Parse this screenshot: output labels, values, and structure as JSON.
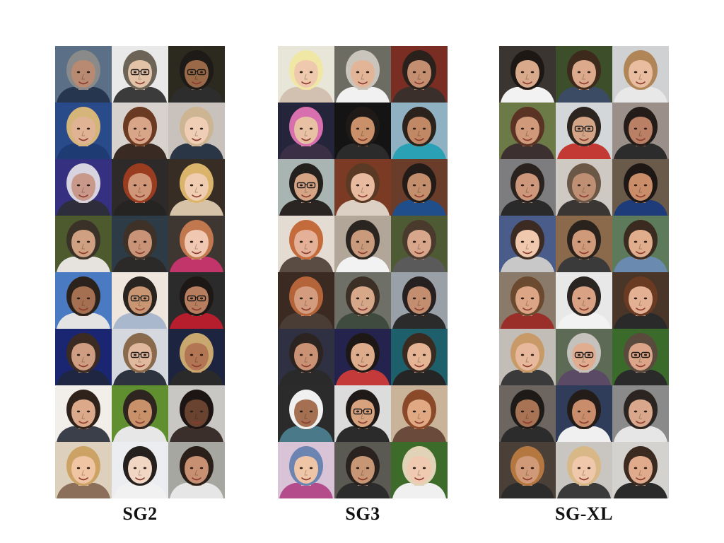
{
  "panels": [
    {
      "label": "SG2",
      "faces": [
        {
          "bg": "#5b6f86",
          "skin": "#b88a72",
          "hair": "#8a8a8a",
          "shirt": "#27364f",
          "glasses": false
        },
        {
          "bg": "#e9e9e9",
          "skin": "#e3c3a8",
          "hair": "#6d6458",
          "shirt": "#3b3b3b",
          "glasses": true
        },
        {
          "bg": "#2c2a1f",
          "skin": "#9a6a48",
          "hair": "#1e1a18",
          "shirt": "#2d2d2d",
          "glasses": true
        },
        {
          "bg": "#2a4b8a",
          "skin": "#e0b394",
          "hair": "#d6b57a",
          "shirt": "#1f3b74",
          "glasses": false
        },
        {
          "bg": "#d8d2cf",
          "skin": "#d9a588",
          "hair": "#6b3a22",
          "shirt": "#3a2a24",
          "glasses": false
        },
        {
          "bg": "#c9c2bc",
          "skin": "#f0cdb5",
          "hair": "#cdb594",
          "shirt": "#2a3646",
          "glasses": false
        },
        {
          "bg": "#35307f",
          "skin": "#c8988a",
          "hair": "#d7d4df",
          "shirt": "#2d2d3c",
          "glasses": false
        },
        {
          "bg": "#2f2a2a",
          "skin": "#cf9678",
          "hair": "#9a3c1f",
          "shirt": "#262323",
          "glasses": false
        },
        {
          "bg": "#372d25",
          "skin": "#f0cdb0",
          "hair": "#d9b46a",
          "shirt": "#d6c2a6",
          "glasses": false
        },
        {
          "bg": "#4c5a2e",
          "skin": "#cfa081",
          "hair": "#3a3128",
          "shirt": "#e6e3df",
          "glasses": false
        },
        {
          "bg": "#2d3b46",
          "skin": "#c89377",
          "hair": "#3d3128",
          "shirt": "#2c2a28",
          "glasses": false
        },
        {
          "bg": "#3e3630",
          "skin": "#f0c7b0",
          "hair": "#c1784f",
          "shirt": "#c2356a",
          "glasses": false
        },
        {
          "bg": "#4a7ac2",
          "skin": "#a56f51",
          "hair": "#2c221c",
          "shirt": "#e3e3e3",
          "glasses": false
        },
        {
          "bg": "#efe7de",
          "skin": "#c99673",
          "hair": "#2a2420",
          "shirt": "#a9b8cc",
          "glasses": true
        },
        {
          "bg": "#2b2b2b",
          "skin": "#b67d5e",
          "hair": "#1d1816",
          "shirt": "#b61d2d",
          "glasses": true
        },
        {
          "bg": "#1a2671",
          "skin": "#cf9e82",
          "hair": "#3c2b22",
          "shirt": "#1e2642",
          "glasses": false
        },
        {
          "bg": "#d5d8df",
          "skin": "#e0b89e",
          "hair": "#8a6a4d",
          "shirt": "#2d3440",
          "glasses": true
        },
        {
          "bg": "#1d2440",
          "skin": "#b37654",
          "hair": "#c9a870",
          "shirt": "#2a2a2a",
          "glasses": false
        },
        {
          "bg": "#f2efeb",
          "skin": "#dcaa8a",
          "hair": "#2e221b",
          "shirt": "#3b3f4a",
          "glasses": false
        },
        {
          "bg": "#5f8f2e",
          "skin": "#c99169",
          "hair": "#2f2520",
          "shirt": "#e7e7e7",
          "glasses": false
        },
        {
          "bg": "#c9c7c3",
          "skin": "#6a4330",
          "hair": "#1c1513",
          "shirt": "#3a2f2a",
          "glasses": false
        },
        {
          "bg": "#ddd1bd",
          "skin": "#efc5a3",
          "hair": "#cda265",
          "shirt": "#8c6f5a",
          "glasses": false
        },
        {
          "bg": "#ebedf1",
          "skin": "#f1d6c4",
          "hair": "#251f1d",
          "shirt": "#f1f1f1",
          "glasses": false
        },
        {
          "bg": "#a7a7a2",
          "skin": "#c89073",
          "hair": "#2a2019",
          "shirt": "#e6e6e6",
          "glasses": false
        }
      ]
    },
    {
      "label": "SG3",
      "faces": [
        {
          "bg": "#e8e6d8",
          "skin": "#efc9ad",
          "hair": "#f1e7a5",
          "shirt": "#d2c0b0",
          "glasses": false
        },
        {
          "bg": "#6d6c63",
          "skin": "#e2b599",
          "hair": "#c9c5bc",
          "shirt": "#f1f1f1",
          "glasses": false
        },
        {
          "bg": "#7a2d22",
          "skin": "#c48e70",
          "hair": "#2b211c",
          "shirt": "#3a2f2b",
          "glasses": false
        },
        {
          "bg": "#24243a",
          "skin": "#e8c0a4",
          "hair": "#d86fae",
          "shirt": "#3a2f45",
          "glasses": false
        },
        {
          "bg": "#151414",
          "skin": "#c9906a",
          "hair": "#1f1a17",
          "shirt": "#2b2b2b",
          "glasses": false
        },
        {
          "bg": "#8fb1c2",
          "skin": "#c08864",
          "hair": "#2b221c",
          "shirt": "#2aa1b5",
          "glasses": false
        },
        {
          "bg": "#a8b5b3",
          "skin": "#d5a485",
          "hair": "#24201d",
          "shirt": "#2a2522",
          "glasses": true
        },
        {
          "bg": "#7b3a23",
          "skin": "#e8bba0",
          "hair": "#5a3a24",
          "shirt": "#dcd0c4",
          "glasses": false
        },
        {
          "bg": "#6a3d2a",
          "skin": "#c28e6c",
          "hair": "#231b17",
          "shirt": "#1f4e8a",
          "glasses": false
        },
        {
          "bg": "#e4dcd2",
          "skin": "#e4b198",
          "hair": "#c46b3c",
          "shirt": "#5a4b43",
          "glasses": false
        },
        {
          "bg": "#b1a697",
          "skin": "#c99a7c",
          "hair": "#2b2521",
          "shirt": "#f2f2f2",
          "glasses": false
        },
        {
          "bg": "#4e5a33",
          "skin": "#d8a68a",
          "hair": "#4a3a2e",
          "shirt": "#5a5a5a",
          "glasses": false
        },
        {
          "bg": "#3b2a22",
          "skin": "#d39c7e",
          "hair": "#b5643a",
          "shirt": "#4a3d36",
          "glasses": false
        },
        {
          "bg": "#6e6f66",
          "skin": "#d7a78a",
          "hair": "#3b2f26",
          "shirt": "#3f4b3f",
          "glasses": false
        },
        {
          "bg": "#9aa0a7",
          "skin": "#c38d6f",
          "hair": "#262120",
          "shirt": "#2b2b2b",
          "glasses": false
        },
        {
          "bg": "#2f3142",
          "skin": "#c99274",
          "hair": "#2c2420",
          "shirt": "#2a2a2a",
          "glasses": false
        },
        {
          "bg": "#23234e",
          "skin": "#ddac8d",
          "hair": "#1d1815",
          "shirt": "#c43a3a",
          "glasses": false
        },
        {
          "bg": "#1d5f6a",
          "skin": "#e4b495",
          "hair": "#3b2a20",
          "shirt": "#252525",
          "glasses": false
        },
        {
          "bg": "#2b2b2b",
          "skin": "#a57052",
          "hair": "#f0f0f0",
          "shirt": "#4a7a8a",
          "glasses": false
        },
        {
          "bg": "#dcdcdc",
          "skin": "#d7a27e",
          "hair": "#1f1a18",
          "shirt": "#2b2b2b",
          "glasses": true
        },
        {
          "bg": "#c9b49a",
          "skin": "#e0a883",
          "hair": "#8a4a2a",
          "shirt": "#6a4a3a",
          "glasses": false
        },
        {
          "bg": "#d9c3d6",
          "skin": "#efc5a7",
          "hair": "#6c84b2",
          "shirt": "#b44b8b",
          "glasses": false
        },
        {
          "bg": "#5a5a52",
          "skin": "#c79675",
          "hair": "#2a221e",
          "shirt": "#2c2c2c",
          "glasses": false
        },
        {
          "bg": "#3d6b2a",
          "skin": "#efcab0",
          "hair": "#e0d3b8",
          "shirt": "#f0f0f0",
          "glasses": false
        }
      ]
    },
    {
      "label": "SG-XL",
      "faces": [
        {
          "bg": "#3a3530",
          "skin": "#d9a98c",
          "hair": "#1e1815",
          "shirt": "#f2f2f2",
          "glasses": false
        },
        {
          "bg": "#3d4e2a",
          "skin": "#dca98d",
          "hair": "#3d2a1c",
          "shirt": "#3a4b63",
          "glasses": false
        },
        {
          "bg": "#cfd1d3",
          "skin": "#e8bda0",
          "hair": "#b08658",
          "shirt": "#e8e8e8",
          "glasses": false
        },
        {
          "bg": "#6b7a46",
          "skin": "#d09a7a",
          "hair": "#5a3324",
          "shirt": "#3c3030",
          "glasses": false
        },
        {
          "bg": "#d3d7da",
          "skin": "#d4a487",
          "hair": "#2c241f",
          "shirt": "#c23a33",
          "glasses": true
        },
        {
          "bg": "#9a9089",
          "skin": "#b98065",
          "hair": "#241c18",
          "shirt": "#2c2c2c",
          "glasses": false
        },
        {
          "bg": "#7d7d80",
          "skin": "#cc977b",
          "hair": "#2a221e",
          "shirt": "#2a2a2a",
          "glasses": false
        },
        {
          "bg": "#cfc9c4",
          "skin": "#bf8f74",
          "hair": "#6b5745",
          "shirt": "#3a3633",
          "glasses": false
        },
        {
          "bg": "#6a5a4a",
          "skin": "#c98d6a",
          "hair": "#1d1715",
          "shirt": "#1e3b7a",
          "glasses": false
        },
        {
          "bg": "#4a5d8a",
          "skin": "#efc8ad",
          "hair": "#3b2b23",
          "shirt": "#c8c8c8",
          "glasses": false
        },
        {
          "bg": "#8a6a4a",
          "skin": "#cf9a79",
          "hair": "#2a221d",
          "shirt": "#3a3a3a",
          "glasses": false
        },
        {
          "bg": "#5d7a5a",
          "skin": "#e0ad8d",
          "hair": "#3a2a20",
          "shirt": "#6a8ab0",
          "glasses": false
        },
        {
          "bg": "#8a7a6a",
          "skin": "#dca585",
          "hair": "#6b4a30",
          "shirt": "#9a2f2a",
          "glasses": false
        },
        {
          "bg": "#e8e8e8",
          "skin": "#d9a285",
          "hair": "#2b2522",
          "shirt": "#f2f2f2",
          "glasses": false
        },
        {
          "bg": "#4a3628",
          "skin": "#e4b094",
          "hair": "#6a3a22",
          "shirt": "#2a2a2a",
          "glasses": false
        },
        {
          "bg": "#c2bdb7",
          "skin": "#e7b89b",
          "hair": "#c89a68",
          "shirt": "#3a3a3a",
          "glasses": false
        },
        {
          "bg": "#5d6a55",
          "skin": "#e0ad90",
          "hair": "#c5c2bd",
          "shirt": "#5a4a66",
          "glasses": true
        },
        {
          "bg": "#3b6b2a",
          "skin": "#dca589",
          "hair": "#5a4a3e",
          "shirt": "#2a2a2a",
          "glasses": true
        },
        {
          "bg": "#6d6660",
          "skin": "#a87254",
          "hair": "#1d1a18",
          "shirt": "#2c2c2c",
          "glasses": false
        },
        {
          "bg": "#2f3d5a",
          "skin": "#c98d6b",
          "hair": "#231c18",
          "shirt": "#f0f0f0",
          "glasses": false
        },
        {
          "bg": "#8a8a8a",
          "skin": "#d9a88c",
          "hair": "#2b2420",
          "shirt": "#e6e6e6",
          "glasses": false
        },
        {
          "bg": "#4a4038",
          "skin": "#d09a79",
          "hair": "#b3773f",
          "shirt": "#2c2c2c",
          "glasses": false
        },
        {
          "bg": "#c9c5c0",
          "skin": "#efc7ab",
          "hair": "#d8b886",
          "shirt": "#3a3a3a",
          "glasses": false
        },
        {
          "bg": "#d4d2cf",
          "skin": "#e0ab8c",
          "hair": "#3b2a20",
          "shirt": "#2a2a2a",
          "glasses": false
        }
      ]
    }
  ]
}
